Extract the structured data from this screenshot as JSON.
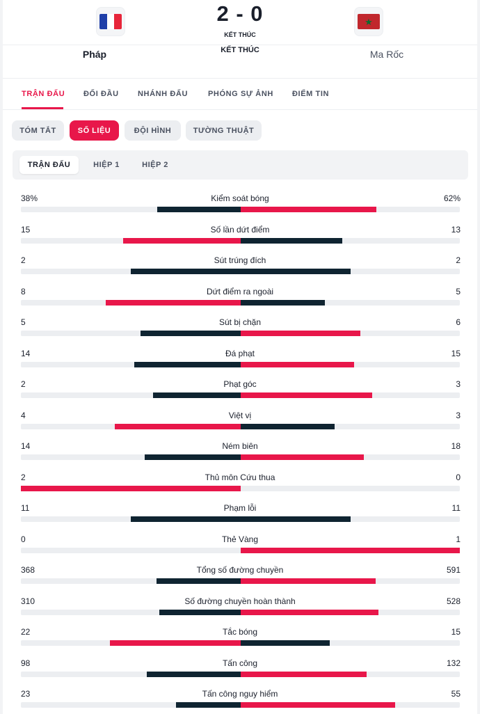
{
  "match": {
    "score": "2 - 0",
    "status_small": "KẾT THÚC",
    "status": "KẾT THÚC",
    "home_team": "Pháp",
    "away_team": "Ma Rốc"
  },
  "colors": {
    "accent": "#e8174a",
    "dark": "#0f2431"
  },
  "main_tabs": [
    {
      "label": "TRẬN ĐẤU",
      "active": true
    },
    {
      "label": "ĐỐI ĐẦU",
      "active": false
    },
    {
      "label": "NHÁNH ĐẤU",
      "active": false
    },
    {
      "label": "PHÓNG SỰ ẢNH",
      "active": false
    },
    {
      "label": "ĐIỂM TIN",
      "active": false
    }
  ],
  "sub_tabs": [
    {
      "label": "TÓM TẮT",
      "active": false
    },
    {
      "label": "SỐ LIỆU",
      "active": true
    },
    {
      "label": "ĐỘI HÌNH",
      "active": false
    },
    {
      "label": "TƯỜNG THUẬT",
      "active": false
    }
  ],
  "period_tabs": [
    {
      "label": "TRẬN ĐẤU",
      "active": true
    },
    {
      "label": "HIỆP 1",
      "active": false
    },
    {
      "label": "HIỆP 2",
      "active": false
    }
  ],
  "stats": [
    {
      "label": "Kiểm soát bóng",
      "home": "38%",
      "away": "62%",
      "home_val": 38,
      "away_val": 62,
      "leader": "away"
    },
    {
      "label": "Số lần dứt điểm",
      "home": "15",
      "away": "13",
      "home_val": 15,
      "away_val": 13,
      "leader": "home"
    },
    {
      "label": "Sút trúng đích",
      "home": "2",
      "away": "2",
      "home_val": 2,
      "away_val": 2,
      "leader": "none"
    },
    {
      "label": "Dứt điểm ra ngoài",
      "home": "8",
      "away": "5",
      "home_val": 8,
      "away_val": 5,
      "leader": "home"
    },
    {
      "label": "Sút bị chặn",
      "home": "5",
      "away": "6",
      "home_val": 5,
      "away_val": 6,
      "leader": "away"
    },
    {
      "label": "Đá phạt",
      "home": "14",
      "away": "15",
      "home_val": 14,
      "away_val": 15,
      "leader": "away"
    },
    {
      "label": "Phạt góc",
      "home": "2",
      "away": "3",
      "home_val": 2,
      "away_val": 3,
      "leader": "away"
    },
    {
      "label": "Việt vị",
      "home": "4",
      "away": "3",
      "home_val": 4,
      "away_val": 3,
      "leader": "home"
    },
    {
      "label": "Ném biên",
      "home": "14",
      "away": "18",
      "home_val": 14,
      "away_val": 18,
      "leader": "away"
    },
    {
      "label": "Thủ môn Cứu thua",
      "home": "2",
      "away": "0",
      "home_val": 2,
      "away_val": 0,
      "leader": "home"
    },
    {
      "label": "Phạm lỗi",
      "home": "11",
      "away": "11",
      "home_val": 11,
      "away_val": 11,
      "leader": "none"
    },
    {
      "label": "Thẻ Vàng",
      "home": "0",
      "away": "1",
      "home_val": 0,
      "away_val": 1,
      "leader": "away"
    },
    {
      "label": "Tổng số đường chuyền",
      "home": "368",
      "away": "591",
      "home_val": 368,
      "away_val": 591,
      "leader": "away"
    },
    {
      "label": "Số đường chuyền hoàn thành",
      "home": "310",
      "away": "528",
      "home_val": 310,
      "away_val": 528,
      "leader": "away"
    },
    {
      "label": "Tắc bóng",
      "home": "22",
      "away": "15",
      "home_val": 22,
      "away_val": 15,
      "leader": "home"
    },
    {
      "label": "Tấn công",
      "home": "98",
      "away": "132",
      "home_val": 98,
      "away_val": 132,
      "leader": "away"
    },
    {
      "label": "Tấn công nguy hiểm",
      "home": "23",
      "away": "55",
      "home_val": 23,
      "away_val": 55,
      "leader": "away"
    }
  ]
}
